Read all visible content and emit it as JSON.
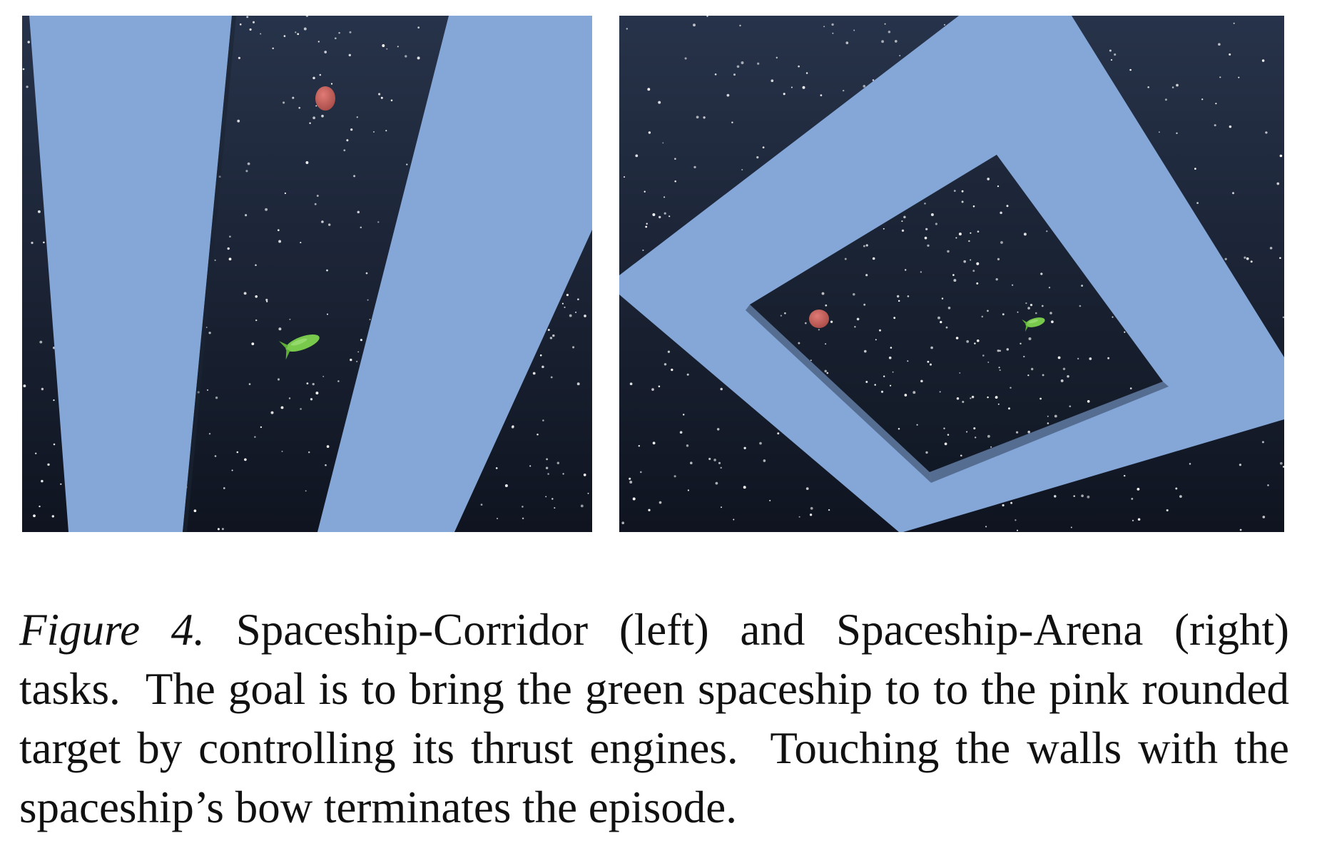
{
  "figure": {
    "label": "Figure 4.",
    "caption": "Spaceship-Corridor (left) and Spaceship-Arena (right) tasks.  The goal is to bring the green spaceship to to the pink rounded target by controlling its thrust engines.  Touching the walls with the spaceship’s bow terminates the episode."
  },
  "colors": {
    "space": "#151d2b",
    "wall": "#84a7d8",
    "target": "#c8645f",
    "ship": "#79c94c",
    "star": "#ffffff"
  }
}
